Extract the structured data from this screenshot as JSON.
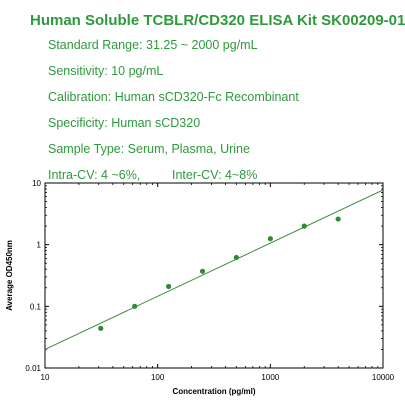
{
  "header": {
    "title": "Human Soluble TCBLR/CD320 ELISA Kit SK00209-01",
    "specs": [
      "Standard Range: 31.25 ~ 2000 pg/mL",
      "Sensitivity: 10 pg/mL",
      "Calibration: Human sCD320-Fc Recombinant",
      "Specificity: Human sCD320",
      "Sample Type: Serum, Plasma, Urine"
    ],
    "intra_cv": "Intra-CV: 4 ~6%,",
    "inter_cv": "Inter-CV: 4~8%"
  },
  "colors": {
    "text_green": "#2e9a3d",
    "line": "#3c8a3c",
    "point": "#2e8b2e"
  },
  "chart_data": {
    "type": "scatter",
    "xscale": "log",
    "yscale": "log",
    "xlabel": "Concentration (pg/ml)",
    "ylabel": "Average OD450nm",
    "xlim": [
      10,
      10000
    ],
    "ylim": [
      0.01,
      10
    ],
    "x_ticks": [
      "10",
      "100",
      "1000",
      "10000"
    ],
    "y_ticks": [
      "0.01",
      "0.1",
      "1",
      "10"
    ],
    "points": [
      {
        "x": 31.25,
        "y": 0.044
      },
      {
        "x": 62.5,
        "y": 0.1
      },
      {
        "x": 125,
        "y": 0.21
      },
      {
        "x": 250,
        "y": 0.37
      },
      {
        "x": 500,
        "y": 0.62
      },
      {
        "x": 1000,
        "y": 1.25
      },
      {
        "x": 2000,
        "y": 2.0
      },
      {
        "x": 4000,
        "y": 2.6
      }
    ],
    "fit_line": [
      {
        "x": 10,
        "y": 0.02
      },
      {
        "x": 10000,
        "y": 7.7
      }
    ],
    "grid": false
  }
}
